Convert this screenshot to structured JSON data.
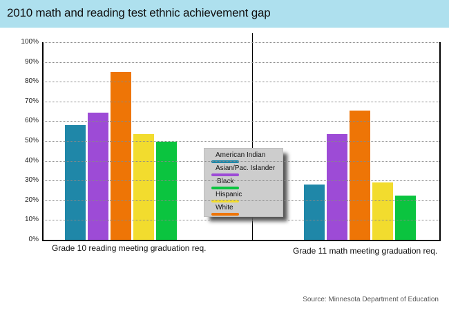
{
  "header": {
    "title": "2010 math and reading test ethnic achievement gap",
    "background": "#aee0ee"
  },
  "source": "Source: Minnesota Department of Education",
  "chart_data": {
    "type": "bar",
    "title": "2010 math and reading test ethnic achievement gap",
    "xlabel": "",
    "ylabel": "",
    "ylim": [
      0,
      100
    ],
    "grid": true,
    "legend_position": "center",
    "y_ticks": [
      "0%",
      "10%",
      "20%",
      "30%",
      "40%",
      "50%",
      "60%",
      "70%",
      "80%",
      "90%",
      "100%"
    ],
    "categories": [
      "Grade 10 reading meeting graduation req.",
      "Grade 11 math meeting graduation req."
    ],
    "series": [
      {
        "name": "American Indian",
        "color": "#1f87a8",
        "values": [
          58,
          28
        ]
      },
      {
        "name": "Asian/Pac. Islander",
        "color": "#9d4bd6",
        "values": [
          64.5,
          53.5
        ]
      },
      {
        "name": "White",
        "color": "#ee7506",
        "values": [
          85,
          65.5
        ]
      },
      {
        "name": "Hispanic",
        "color": "#f2dc2e",
        "values": [
          53.5,
          29
        ]
      },
      {
        "name": "Black",
        "color": "#0bc43f",
        "values": [
          49.7,
          22.5
        ]
      }
    ],
    "legend": [
      {
        "label": "American Indian",
        "color": "#1f87a8"
      },
      {
        "label": "Asian/Pac. Islander",
        "color": "#9d4bd6"
      },
      {
        "label": "Black",
        "color": "#0bc43f"
      },
      {
        "label": "Hispanic",
        "color": "#f2dc2e"
      },
      {
        "label": "White",
        "color": "#ee7506"
      }
    ],
    "source": "Source: Minnesota Department of Education"
  }
}
